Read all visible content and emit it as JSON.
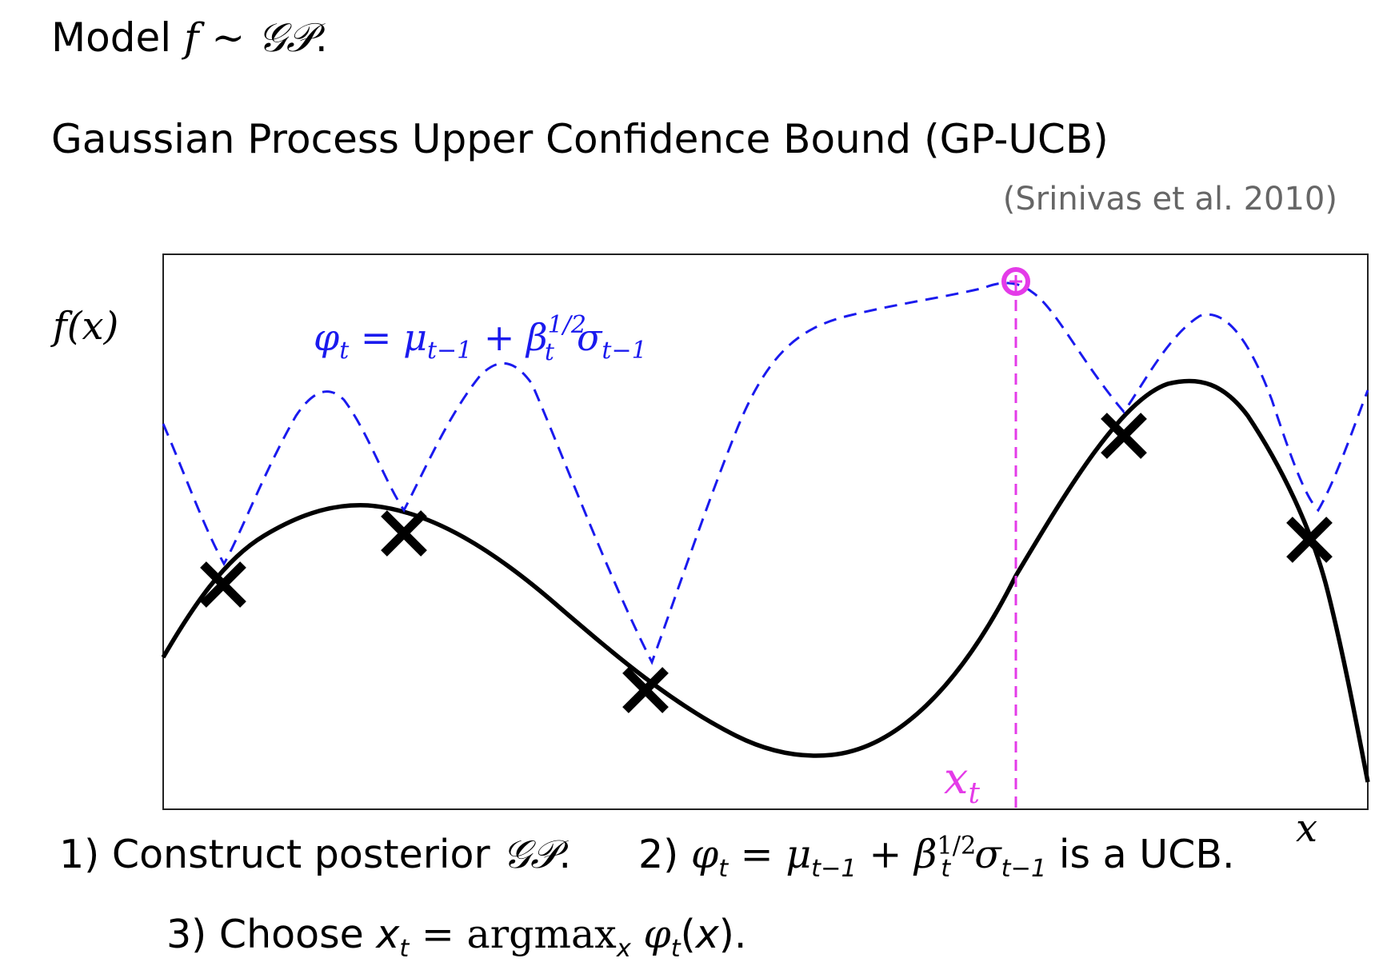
{
  "header": {
    "model_prefix": "Model ",
    "model_f": "f",
    "model_sim": " ∼ ",
    "model_gp": "𝒢𝒫",
    "model_end": ".",
    "title": "Gaussian Process Upper Confidence Bound (GP-UCB)",
    "citation": "(Srinivas et al. 2010)"
  },
  "plot": {
    "ylabel": "f(x)",
    "xlabel": "x",
    "acq_label_lhs": "φ",
    "acq_label_sub": "t",
    "acq_label_eq": " = μ",
    "acq_label_mu_sub": "t−1",
    "acq_label_plus": " + β",
    "acq_label_beta_sup": "1/2",
    "acq_label_beta_sub": "t",
    "acq_label_sigma": "σ",
    "acq_label_sigma_sub": "t−1",
    "xt_label": "x",
    "xt_sub": "t",
    "colors": {
      "function": "#000000",
      "ucb": "#1a1aee",
      "argmax": "#e43be8",
      "frame": "#222222"
    }
  },
  "steps": {
    "s1_prefix": "1) Construct posterior ",
    "s1_gp": "𝒢𝒫",
    "s1_end": ".",
    "s2_prefix": "2) ",
    "s2_phi": "φ",
    "s2_phi_sub": "t",
    "s2_eq": " = μ",
    "s2_mu_sub": "t−1",
    "s2_plus": " + β",
    "s2_beta_sup": "1/2",
    "s2_beta_sub": "t",
    "s2_sigma": "σ",
    "s2_sigma_sub": "t−1",
    "s2_end": " is a UCB.",
    "s3_prefix": "3) Choose ",
    "s3_x": "x",
    "s3_x_sub": "t",
    "s3_eq": " = argmax",
    "s3_arg_sub": "x",
    "s3_phi": " φ",
    "s3_phi_sub": "t",
    "s3_end_open": "(",
    "s3_end_x": "x",
    "s3_end_close": ")."
  }
}
